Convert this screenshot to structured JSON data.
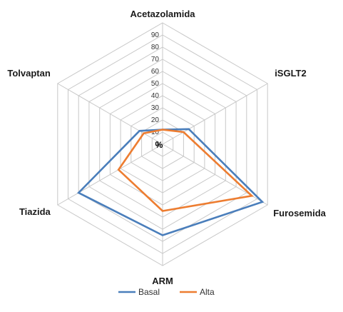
{
  "chart_data": {
    "type": "radar",
    "categories": [
      "Acetazolamida",
      "iSGLT2",
      "Furosemida",
      "ARM",
      "Tiazida",
      "Tolvaptan"
    ],
    "series": [
      {
        "name": "Basal",
        "values": [
          12,
          25,
          95,
          75,
          80,
          22
        ],
        "color": "#4a7ebb"
      },
      {
        "name": "Alta",
        "values": [
          12,
          20,
          85,
          55,
          42,
          18
        ],
        "color": "#ed7d31"
      }
    ],
    "ticks": [
      0,
      10,
      20,
      30,
      40,
      50,
      60,
      70,
      80,
      90
    ],
    "rlim": [
      0,
      100
    ],
    "center_label": "%",
    "grid": true,
    "legend_position": "bottom"
  }
}
